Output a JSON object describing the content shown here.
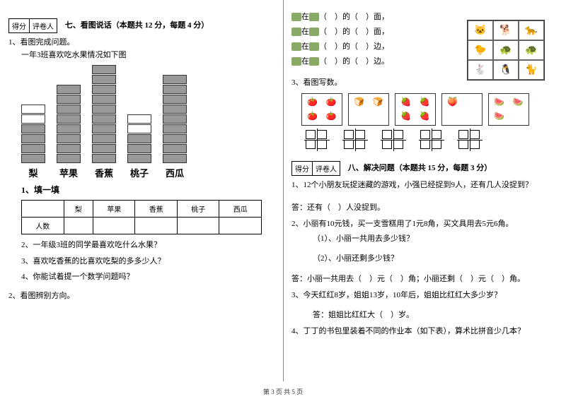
{
  "left": {
    "score_labels": [
      "得分",
      "评卷人"
    ],
    "section7_title": "七、看图说话（本题共 12 分，每题 4 分）",
    "q1": "1、看图完成问题。",
    "q1_sub": "一年3班喜欢吃水果情况如下图",
    "fruits": [
      "梨",
      "苹果",
      "香蕉",
      "桃子",
      "西瓜"
    ],
    "bars": [
      4,
      8,
      10,
      3,
      9
    ],
    "fill_title": "1、填一填",
    "row_header": "人数",
    "q2": "2、一年级3班的同学最喜欢吃什么水果？",
    "q3": "3、喜欢吃香蕉的比喜欢吃梨的多多少人？",
    "q4": "4、你能试着提一个数学问题吗？",
    "q2main": "2、看图辨别方向。"
  },
  "right": {
    "pos_lines": [
      "在（　）的（　）面，",
      "在（　）的（　）面，",
      "在（　）的（　）边，",
      "在（　）的（　）边。"
    ],
    "grid_icons": [
      "🐱",
      "🐕",
      "🐆",
      "🐤",
      "🐢",
      "🐢",
      "🐇",
      "🐧",
      "🐈"
    ],
    "q3r": "3、看图写数。",
    "fruit_cells": [
      [
        "🍅",
        "🍅",
        "🍅",
        "🍅"
      ],
      [
        "🍞",
        "🍞",
        "",
        ""
      ],
      [
        "🍓",
        "🍓",
        "🍓",
        "🍓"
      ],
      [
        "🍑",
        "",
        "",
        ""
      ],
      [
        "🍉",
        "🍉",
        "🍉",
        ""
      ]
    ],
    "score_labels": [
      "得分",
      "评卷人"
    ],
    "section8_title": "八、解决问题（本题共 15 分，每题 3 分）",
    "p1": "1、12个小朋友玩捉迷藏的游戏，小强已经捉到9人，还有几人没捉到？",
    "p1a": "答：还有（　）人没捉到。",
    "p2": "2、小丽有10元钱，买一支雪糕用了1元8角，买文具用去5元6角。",
    "p2_1": "（1）、小丽一共用去多少钱？",
    "p2_2": "（2）、小丽还剩多少钱？",
    "p2a": "答：小丽一共用去（　）元（　）角；小丽还剩（　）元（　）角。",
    "p3": "3、今天红红8岁，姐姐13岁，10年后，姐姐比红红大多少岁？",
    "p3a": "答：姐姐比红红大（　）岁。",
    "p4": "4、丁丁的书包里装着不同的作业本（如下表），算术比拼音少几本？"
  },
  "footer": "第 3 页 共 5 页"
}
